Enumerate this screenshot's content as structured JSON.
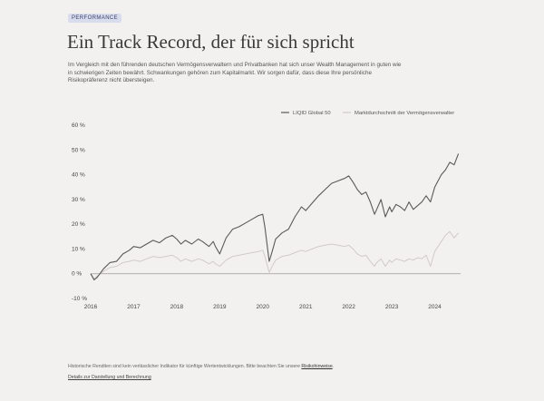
{
  "badge": "PERFORMANCE",
  "title": "Ein Track Record, der für sich spricht",
  "intro": "Im Vergleich mit den führenden deutschen Vermögensverwaltern und Privatbanken hat sich unser Wealth Management in guten wie in schwierigen Zeiten bewährt. Schwankungen gehören zum Kapitalmarkt. Wir sorgen dafür, dass diese Ihre persönliche Risikopräferenz nicht übersteigen.",
  "footnote": {
    "text": "Historische Renditen sind kein verlässlicher Indikator für künftige Wertentwicklungen. Bitte beachten Sie unsere",
    "link": "Risikohinweise",
    "end": "."
  },
  "footnote_link2": "Details zur Darstellung und Berechnung",
  "colors": {
    "background": "#f3f1ef",
    "series_main": "#5a5a5a",
    "series_benchmark": "#cfcbc8",
    "baseline": "#9a9a9a",
    "badge_bg": "#d9dcec"
  },
  "chart_data": {
    "type": "line",
    "legend_position": "top-right",
    "grid": false,
    "ylim": [
      -10,
      60
    ],
    "xlim": [
      2016,
      2024.6
    ],
    "yticks": [
      "60 %",
      "50 %",
      "40 %",
      "30 %",
      "20 %",
      "10 %",
      "0 %",
      "-10 %"
    ],
    "ytick_values": [
      60,
      50,
      40,
      30,
      20,
      10,
      0,
      -10
    ],
    "xticks": [
      "2016",
      "2017",
      "2018",
      "2019",
      "2020",
      "2021",
      "2022",
      "2023",
      "2024"
    ],
    "xtick_values": [
      2016,
      2017,
      2018,
      2019,
      2020,
      2021,
      2022,
      2023,
      2024
    ],
    "series": [
      {
        "name": "LIQID Global 50",
        "x": [
          2016.0,
          2016.08,
          2016.15,
          2016.3,
          2016.45,
          2016.6,
          2016.75,
          2016.9,
          2017.0,
          2017.15,
          2017.3,
          2017.45,
          2017.6,
          2017.75,
          2017.9,
          2018.0,
          2018.1,
          2018.2,
          2018.35,
          2018.5,
          2018.6,
          2018.75,
          2018.85,
          2018.9,
          2019.0,
          2019.15,
          2019.3,
          2019.45,
          2019.6,
          2019.75,
          2019.9,
          2020.0,
          2020.05,
          2020.15,
          2020.22,
          2020.3,
          2020.45,
          2020.6,
          2020.75,
          2020.9,
          2021.0,
          2021.15,
          2021.3,
          2021.45,
          2021.6,
          2021.75,
          2021.9,
          2022.0,
          2022.1,
          2022.2,
          2022.3,
          2022.4,
          2022.5,
          2022.6,
          2022.65,
          2022.75,
          2022.85,
          2022.95,
          2023.0,
          2023.1,
          2023.2,
          2023.3,
          2023.4,
          2023.5,
          2023.6,
          2023.7,
          2023.8,
          2023.9,
          2024.0,
          2024.15,
          2024.25,
          2024.35,
          2024.45,
          2024.55
        ],
        "y": [
          0,
          -2.5,
          -1.5,
          2,
          4.5,
          5,
          8,
          9.5,
          11,
          10.5,
          12,
          13.5,
          12.5,
          14.5,
          15.5,
          14,
          12,
          13.5,
          12,
          14,
          13,
          11,
          13,
          11,
          8,
          14.5,
          18,
          19,
          20.5,
          22,
          23.5,
          24,
          19,
          5,
          9,
          14,
          16.5,
          18,
          23,
          27,
          25.5,
          28.5,
          31.5,
          34,
          36.5,
          37.5,
          38.5,
          39.5,
          37,
          34,
          32,
          33,
          29,
          24,
          26,
          30,
          23,
          27,
          25,
          28,
          27,
          25.5,
          29,
          26,
          27.5,
          29,
          31.5,
          29,
          35,
          40,
          42,
          45,
          44,
          48.5
        ]
      },
      {
        "name": "Marktdurchschnitt der Vermögensverwalter",
        "x": [
          2016.0,
          2016.08,
          2016.15,
          2016.3,
          2016.45,
          2016.6,
          2016.75,
          2016.9,
          2017.0,
          2017.15,
          2017.3,
          2017.45,
          2017.6,
          2017.75,
          2017.9,
          2018.0,
          2018.1,
          2018.2,
          2018.35,
          2018.5,
          2018.6,
          2018.75,
          2018.85,
          2018.9,
          2019.0,
          2019.15,
          2019.3,
          2019.45,
          2019.6,
          2019.75,
          2019.9,
          2020.0,
          2020.05,
          2020.15,
          2020.22,
          2020.3,
          2020.45,
          2020.6,
          2020.75,
          2020.9,
          2021.0,
          2021.15,
          2021.3,
          2021.45,
          2021.6,
          2021.75,
          2021.9,
          2022.0,
          2022.1,
          2022.2,
          2022.3,
          2022.4,
          2022.5,
          2022.6,
          2022.65,
          2022.75,
          2022.85,
          2022.95,
          2023.0,
          2023.1,
          2023.2,
          2023.3,
          2023.4,
          2023.5,
          2023.6,
          2023.7,
          2023.8,
          2023.9,
          2024.0,
          2024.15,
          2024.25,
          2024.35,
          2024.45,
          2024.55
        ],
        "y": [
          0,
          -2,
          -1,
          1,
          2.5,
          3,
          4.5,
          5,
          5.5,
          5,
          6,
          7,
          6.5,
          7,
          7.5,
          6.5,
          5,
          6,
          5,
          6,
          5.5,
          4,
          5,
          4,
          3,
          5.5,
          7,
          7.5,
          8,
          8.5,
          9,
          9.5,
          7,
          0.5,
          3,
          5.5,
          7,
          7.5,
          8.5,
          9.5,
          9,
          10,
          11,
          11.5,
          12,
          11.5,
          11,
          11.5,
          10,
          8,
          7,
          7.5,
          5,
          3,
          4.5,
          6,
          3,
          5.5,
          4.5,
          6,
          5.5,
          5,
          6,
          5.5,
          6.5,
          6,
          7.5,
          3,
          9,
          13,
          15.5,
          17,
          14.5,
          16.5
        ]
      }
    ]
  }
}
